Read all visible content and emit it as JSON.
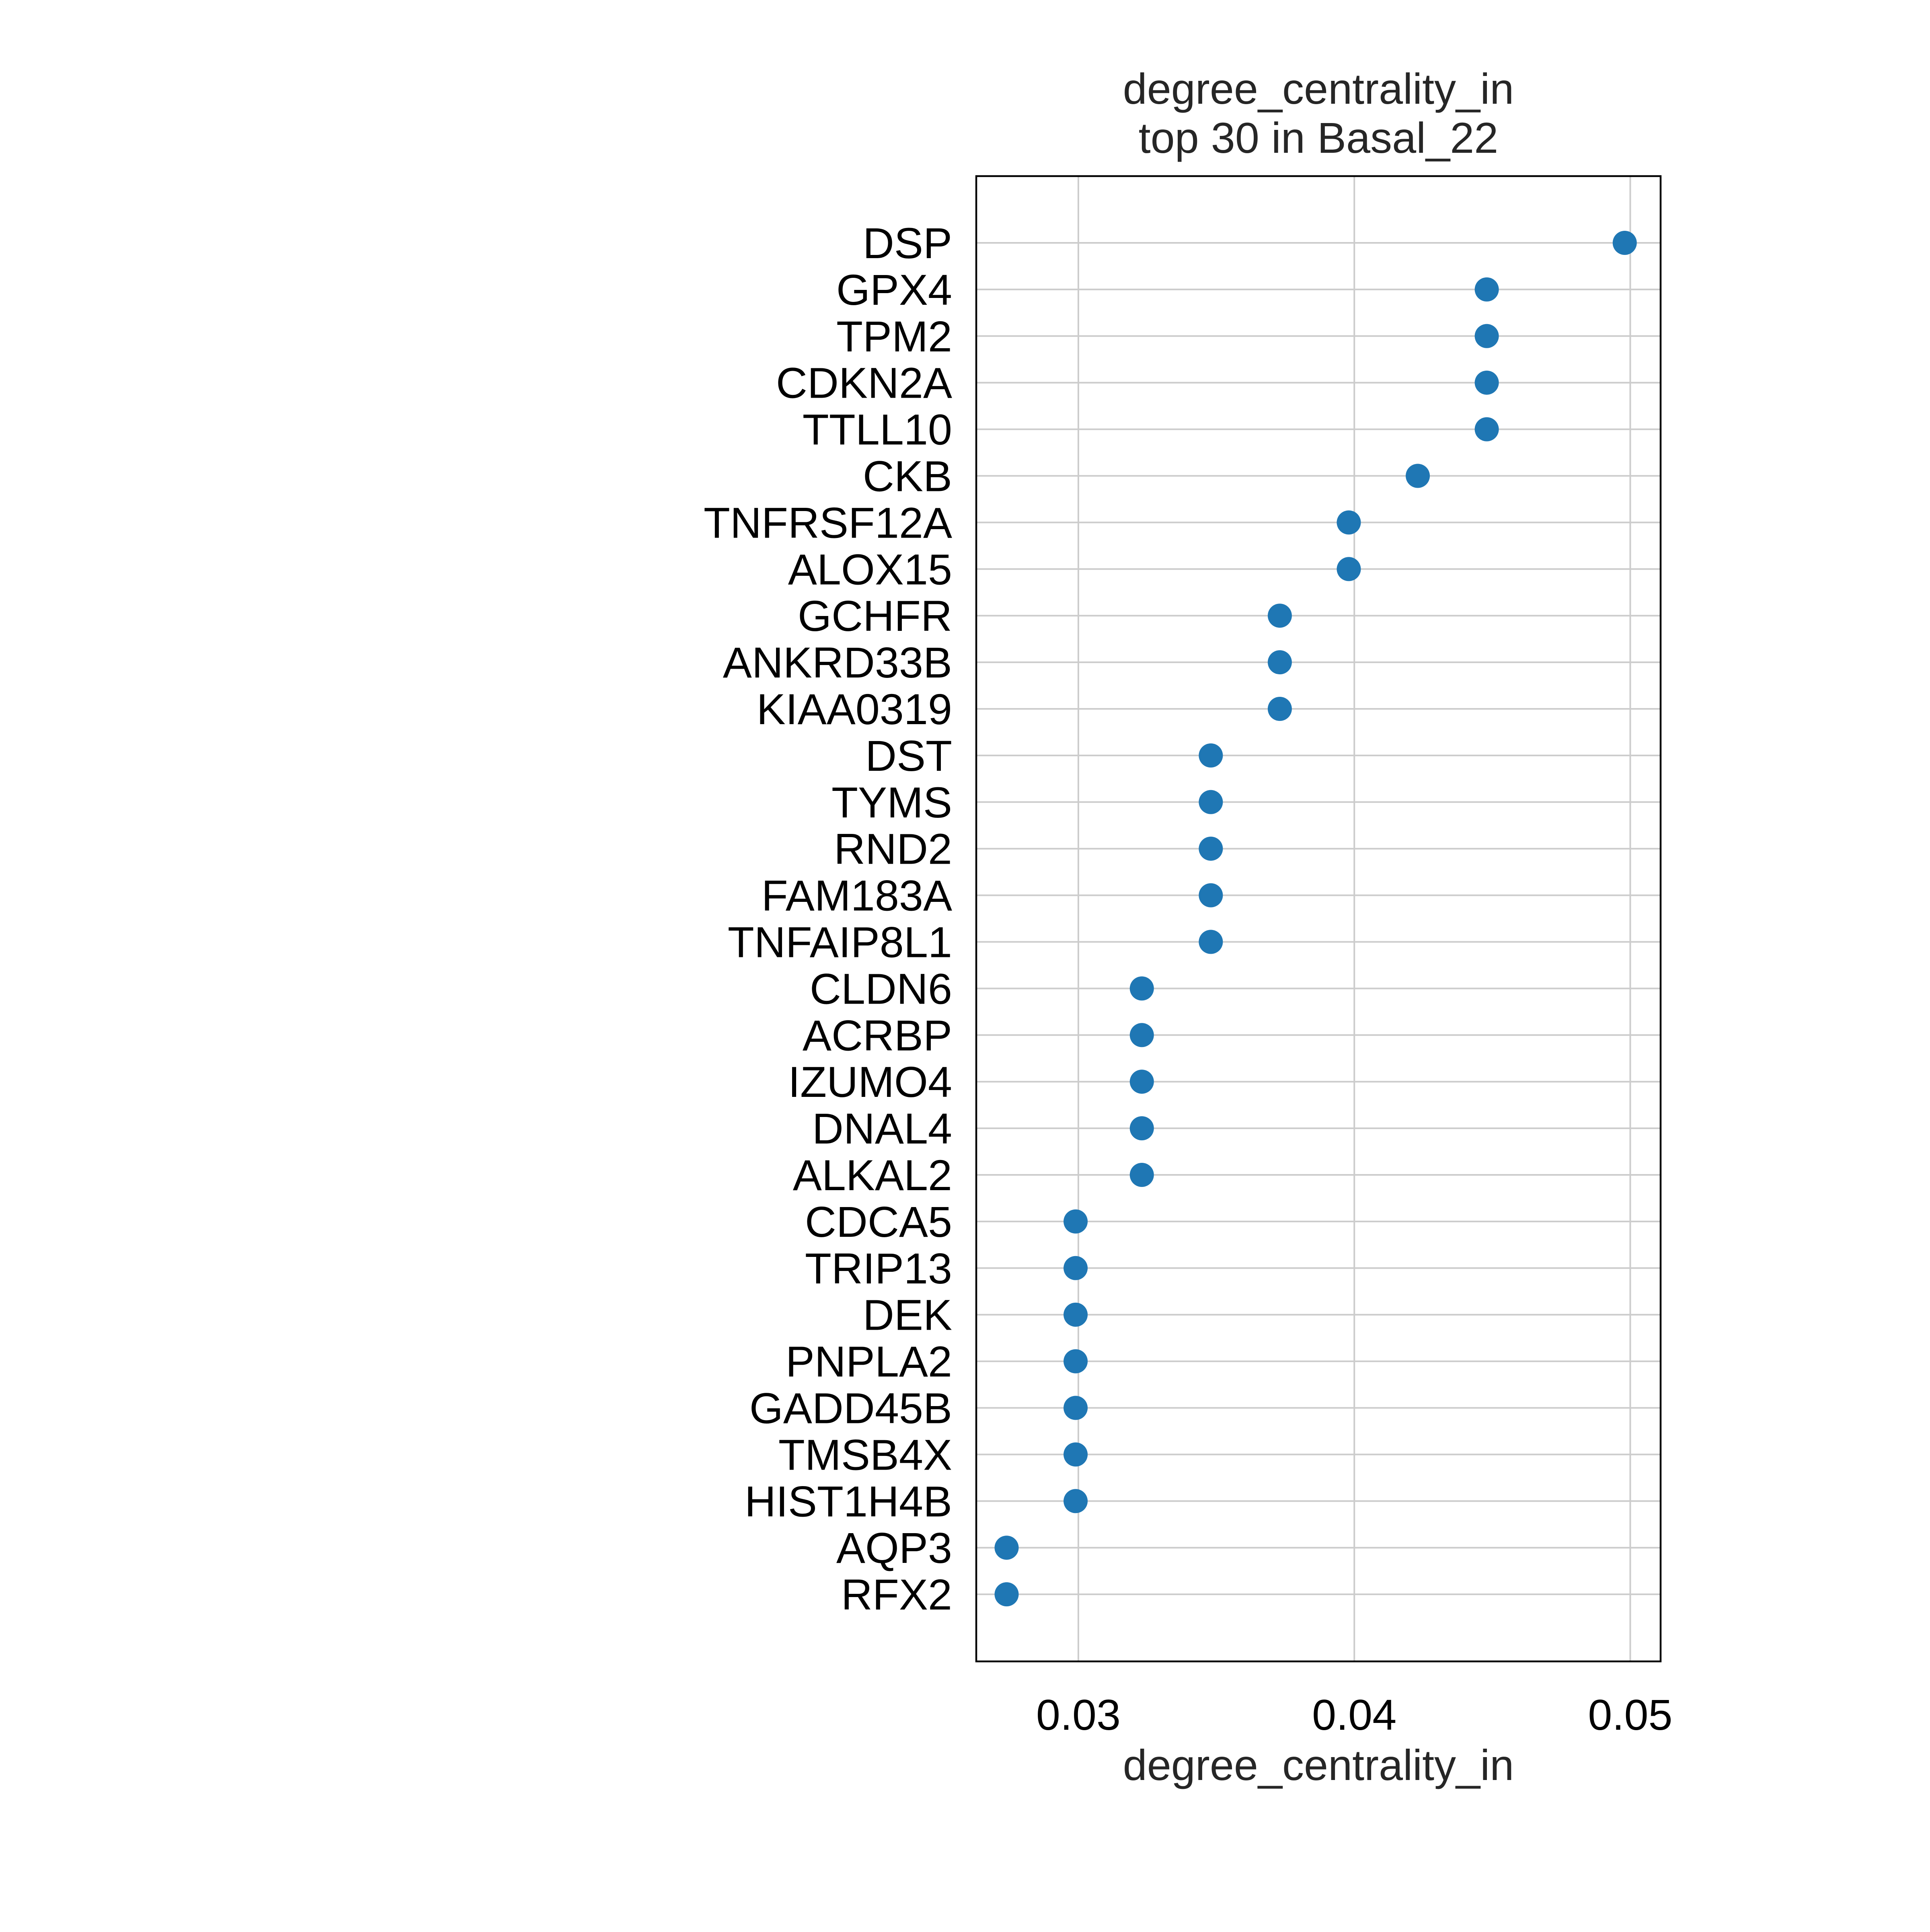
{
  "chart_data": {
    "type": "scatter",
    "title": "degree_centrality_in\ntop 30 in Basal_22",
    "title_lines": [
      "degree_centrality_in",
      "top 30 in Basal_22"
    ],
    "xlabel": "degree_centrality_in",
    "ylabel": "",
    "xlim": [
      0.0263,
      0.0511
    ],
    "xticks": [
      0.03,
      0.04,
      0.05
    ],
    "xtick_labels": [
      "0.03",
      "0.04",
      "0.05"
    ],
    "grid": true,
    "marker_color": "#1f77b4",
    "categories": [
      "DSP",
      "GPX4",
      "TPM2",
      "CDKN2A",
      "TTLL10",
      "CKB",
      "TNFRSF12A",
      "ALOX15",
      "GCHFR",
      "ANKRD33B",
      "KIAA0319",
      "DST",
      "TYMS",
      "RND2",
      "FAM183A",
      "TNFAIP8L1",
      "CLDN6",
      "ACRBP",
      "IZUMO4",
      "DNAL4",
      "ALKAL2",
      "CDCA5",
      "TRIP13",
      "DEK",
      "PNPLA2",
      "GADD45B",
      "TMSB4X",
      "HIST1H4B",
      "AQP3",
      "RFX2"
    ],
    "values": [
      0.0498,
      0.0448,
      0.0448,
      0.0448,
      0.0448,
      0.0423,
      0.0398,
      0.0398,
      0.0373,
      0.0373,
      0.0373,
      0.0348,
      0.0348,
      0.0348,
      0.0348,
      0.0348,
      0.0323,
      0.0323,
      0.0323,
      0.0323,
      0.0323,
      0.0299,
      0.0299,
      0.0299,
      0.0299,
      0.0299,
      0.0299,
      0.0299,
      0.0274,
      0.0274
    ]
  }
}
